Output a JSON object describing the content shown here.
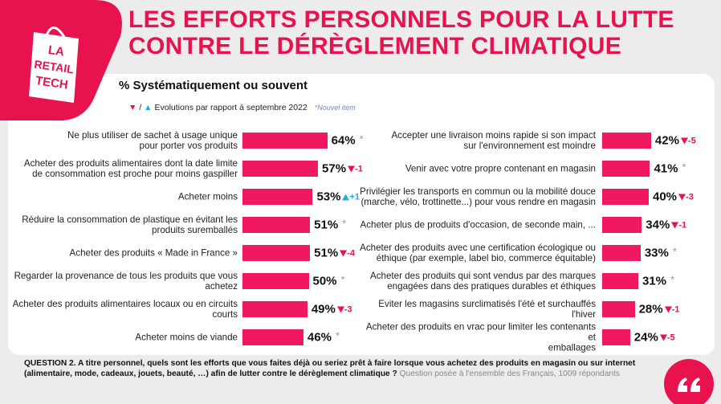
{
  "logo": [
    "LA",
    "RETAIL",
    "TECH"
  ],
  "title": [
    "LES EFFORTS PERSONNELS POUR LA LUTTE",
    "CONTRE LE DÉRÈGLEMENT CLIMATIQUE"
  ],
  "subtitle": "% Systématiquement ou souvent",
  "legend": {
    "down": "▼",
    "separator": "/",
    "up": "▲",
    "text": "Evolutions par rapport à septembre 2022",
    "new_item": "*Nouvel item"
  },
  "chart_data": [
    {
      "type": "bar",
      "orientation": "horizontal",
      "color": "#f0185e",
      "categories": [
        "Ne plus utiliser de sachet à usage unique\npour porter vos produits",
        "Acheter des produits alimentaires dont la date limite\nde consommation est proche pour moins gaspiller",
        "Acheter moins",
        "Réduire la consommation de plastique en évitant les\nproduits suremballés",
        "Acheter des produits « Made in France »",
        "Regarder la provenance de tous les produits que vous\nachetez",
        "Acheter des produits alimentaires locaux ou en circuits\ncourts",
        "Acheter moins de viande"
      ],
      "values": [
        64,
        57,
        53,
        51,
        51,
        50,
        49,
        46
      ],
      "value_labels": [
        "64%",
        "57%",
        "53%",
        "51%",
        "51%",
        "50%",
        "49%",
        "46%"
      ],
      "annotations": [
        "*",
        "-1",
        "+1",
        "*",
        "-4",
        "*",
        "-3",
        "*"
      ]
    },
    {
      "type": "bar",
      "orientation": "horizontal",
      "color": "#f0185e",
      "categories": [
        "Accepter une livraison moins rapide si son impact\nsur l'environnement est moindre",
        "Venir avec votre propre contenant en magasin",
        "Privilégier les transports en commun ou la mobilité douce\n(marche, vélo, trottinette...) pour vous rendre en magasin",
        "Acheter plus de produits d'occasion, de seconde main, ...",
        "Acheter des produits avec une certification écologique ou\néthique (par exemple, label bio, commerce équitable)",
        "Acheter des produits qui sont vendus par des marques\nengagées dans des pratiques durables et éthiques",
        "Eviter les magasins surclimatisés l'été et surchauffés l'hiver",
        "Acheter des produits en vrac pour limiter les contenants et\nemballages"
      ],
      "values": [
        42,
        41,
        40,
        34,
        33,
        31,
        28,
        24
      ],
      "value_labels": [
        "42%",
        "41%",
        "40%",
        "34%",
        "33%",
        "31%",
        "28%",
        "24%"
      ],
      "annotations": [
        "-5",
        "*",
        "-3",
        "-1",
        "*",
        "*",
        "-1",
        "-5"
      ]
    }
  ],
  "question": "QUESTION 2. A titre personnel, quels sont les efforts que vous faites déjà ou seriez prêt à faire lorsque vous achetez des produits en magasin ou sur internet (alimentaire, mode, cadeaux, jouets, beauté, …) afin de lutter contre le dérèglement climatique ?",
  "source": "Question posée à l'ensemble des Français, 1009 répondants"
}
